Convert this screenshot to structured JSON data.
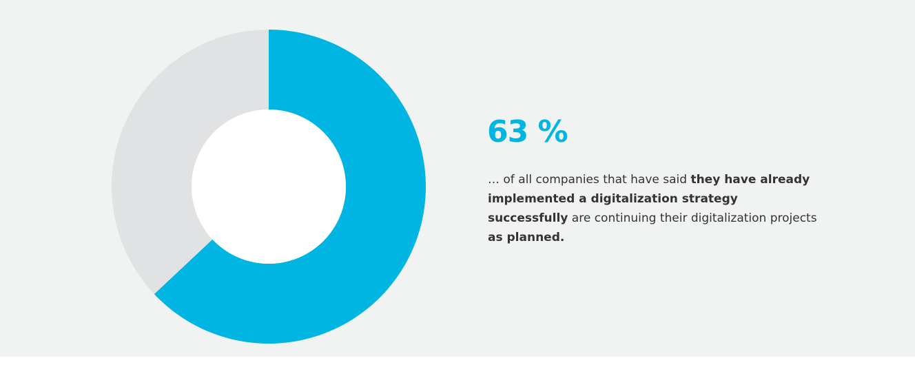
{
  "chart_data": {
    "type": "donut",
    "values": [
      63,
      37
    ],
    "value_labels": [
      "63 %",
      null
    ],
    "colors": [
      "#00b5e2",
      "#e1e2e3"
    ],
    "description": [
      {
        "text": "… of all companies that have said ",
        "bold": false
      },
      {
        "text": "they have already implemented a digitalization strategy successfully",
        "bold": true
      },
      {
        "text": " are continuing their digitalization projects ",
        "bold": false
      },
      {
        "text": "as planned.",
        "bold": true
      }
    ]
  }
}
